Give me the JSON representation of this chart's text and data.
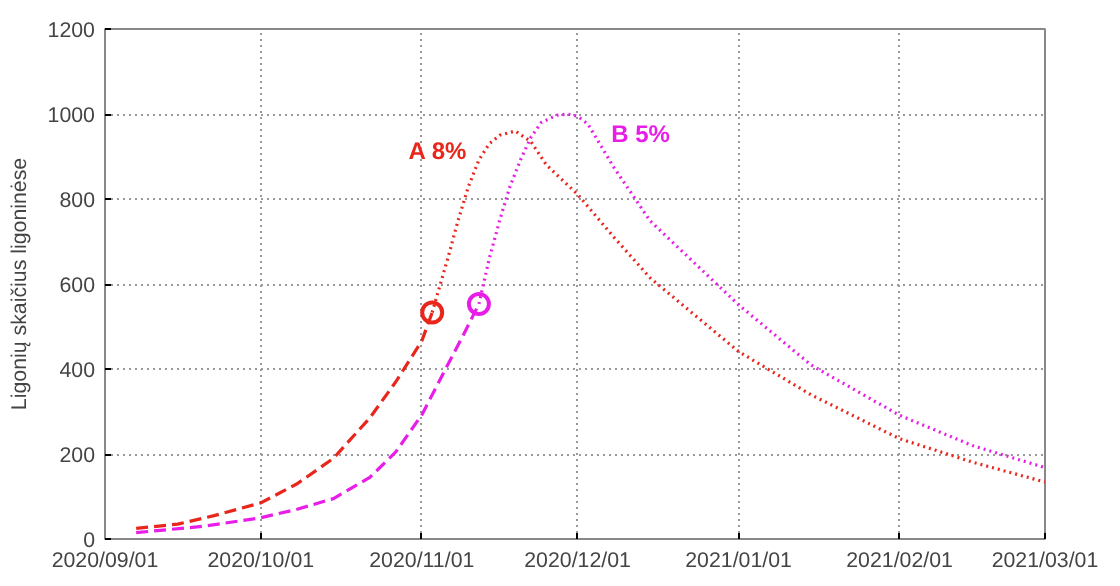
{
  "chart_data": {
    "type": "line",
    "ylabel": "Ligonių skaičius ligoninėse",
    "xlim": [
      "2020-09-01",
      "2021-03-01"
    ],
    "xticks": [
      {
        "value": "2020-09-01",
        "label": "2020/09/01"
      },
      {
        "value": "2020-10-01",
        "label": "2020/10/01"
      },
      {
        "value": "2020-11-01",
        "label": "2020/11/01"
      },
      {
        "value": "2020-12-01",
        "label": "2020/12/01"
      },
      {
        "value": "2021-01-01",
        "label": "2021/01/01"
      },
      {
        "value": "2021-02-01",
        "label": "2021/02/01"
      },
      {
        "value": "2021-03-01",
        "label": "2021/03/01"
      }
    ],
    "ylim": [
      0,
      1200
    ],
    "yticks": [
      0,
      200,
      400,
      600,
      800,
      1000,
      1200
    ],
    "grid": true,
    "series": [
      {
        "line_style": "dashed",
        "color": "#e8261c",
        "x": [
          "2020-09-07",
          "2020-09-15",
          "2020-09-22",
          "2020-10-01",
          "2020-10-08",
          "2020-10-15",
          "2020-10-22",
          "2020-10-27",
          "2020-11-01",
          "2020-11-03"
        ],
        "values": [
          25,
          35,
          55,
          85,
          130,
          190,
          285,
          370,
          466,
          533
        ]
      },
      {
        "name": "A 8%",
        "line_style": "dotted",
        "color": "#e8261c",
        "x": [
          "2020-11-03",
          "2020-11-06",
          "2020-11-08",
          "2020-11-10",
          "2020-11-12",
          "2020-11-14",
          "2020-11-16",
          "2020-11-19",
          "2020-11-22",
          "2020-11-25",
          "2020-12-01",
          "2020-12-08",
          "2020-12-15",
          "2021-01-01",
          "2021-01-15",
          "2021-02-01",
          "2021-02-15",
          "2021-03-01"
        ],
        "values": [
          533,
          660,
          750,
          830,
          892,
          930,
          950,
          960,
          935,
          880,
          811,
          710,
          614,
          441,
          339,
          236,
          181,
          134
        ]
      },
      {
        "type": "scatter",
        "marker": "circle",
        "color": "#e8261c",
        "x": [
          "2020-11-03"
        ],
        "values": [
          533
        ]
      },
      {
        "line_style": "dashed",
        "color": "#e81ee8",
        "x": [
          "2020-09-07",
          "2020-09-20",
          "2020-10-01",
          "2020-10-08",
          "2020-10-15",
          "2020-10-22",
          "2020-10-27",
          "2020-11-01",
          "2020-11-06",
          "2020-11-09",
          "2020-11-12"
        ],
        "values": [
          15,
          30,
          50,
          70,
          95,
          145,
          205,
          292,
          410,
          480,
          553
        ]
      },
      {
        "name": "B 5%",
        "line_style": "dotted",
        "color": "#e81ee8",
        "x": [
          "2020-11-12",
          "2020-11-14",
          "2020-11-16",
          "2020-11-18",
          "2020-11-20",
          "2020-11-22",
          "2020-11-24",
          "2020-11-27",
          "2020-11-29",
          "2020-12-01",
          "2020-12-03",
          "2020-12-08",
          "2020-12-15",
          "2021-01-01",
          "2021-01-15",
          "2021-02-01",
          "2021-02-15",
          "2021-03-01"
        ],
        "values": [
          553,
          660,
          750,
          830,
          892,
          945,
          980,
          997,
          1000,
          995,
          976,
          874,
          748,
          551,
          409,
          291,
          220,
          168
        ]
      },
      {
        "type": "scatter",
        "marker": "circle",
        "color": "#e81ee8",
        "x": [
          "2020-11-12"
        ],
        "values": [
          553
        ]
      }
    ]
  }
}
